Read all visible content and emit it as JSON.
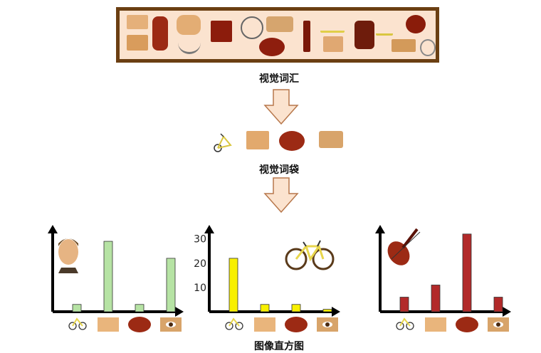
{
  "labels": {
    "vocabulary": "视觉词汇",
    "bag_of_words": "视觉词袋",
    "histogram": "图像直方图"
  },
  "patch_colors": {
    "skin": "#e9b57c",
    "skin_dark": "#c98b52",
    "violin": "#9c2a14",
    "violin_dark": "#5a1208",
    "bike_frame": "#e8d64c",
    "eye": "#d8a46a"
  },
  "icons": [
    "bicycle-icon",
    "skin-patch-icon",
    "violin-body-icon",
    "eye-patch-icon"
  ],
  "chart_data": [
    {
      "type": "bar",
      "categories": [
        "bicycle",
        "skin",
        "violin",
        "eye"
      ],
      "values": [
        3,
        29,
        3,
        22
      ],
      "ylim": [
        0,
        34
      ],
      "color": "#b6e3a4",
      "image": "portrait"
    },
    {
      "type": "bar",
      "categories": [
        "bicycle",
        "skin",
        "violin",
        "eye"
      ],
      "values": [
        22,
        3,
        3,
        1
      ],
      "ylim": [
        0,
        34
      ],
      "yticks": [
        10,
        20,
        30
      ],
      "color": "#f8f000",
      "image": "bicycle"
    },
    {
      "type": "bar",
      "categories": [
        "bicycle",
        "skin",
        "violin",
        "eye"
      ],
      "values": [
        6,
        11,
        32,
        6
      ],
      "ylim": [
        0,
        34
      ],
      "color": "#b22a2a",
      "image": "violin"
    }
  ]
}
